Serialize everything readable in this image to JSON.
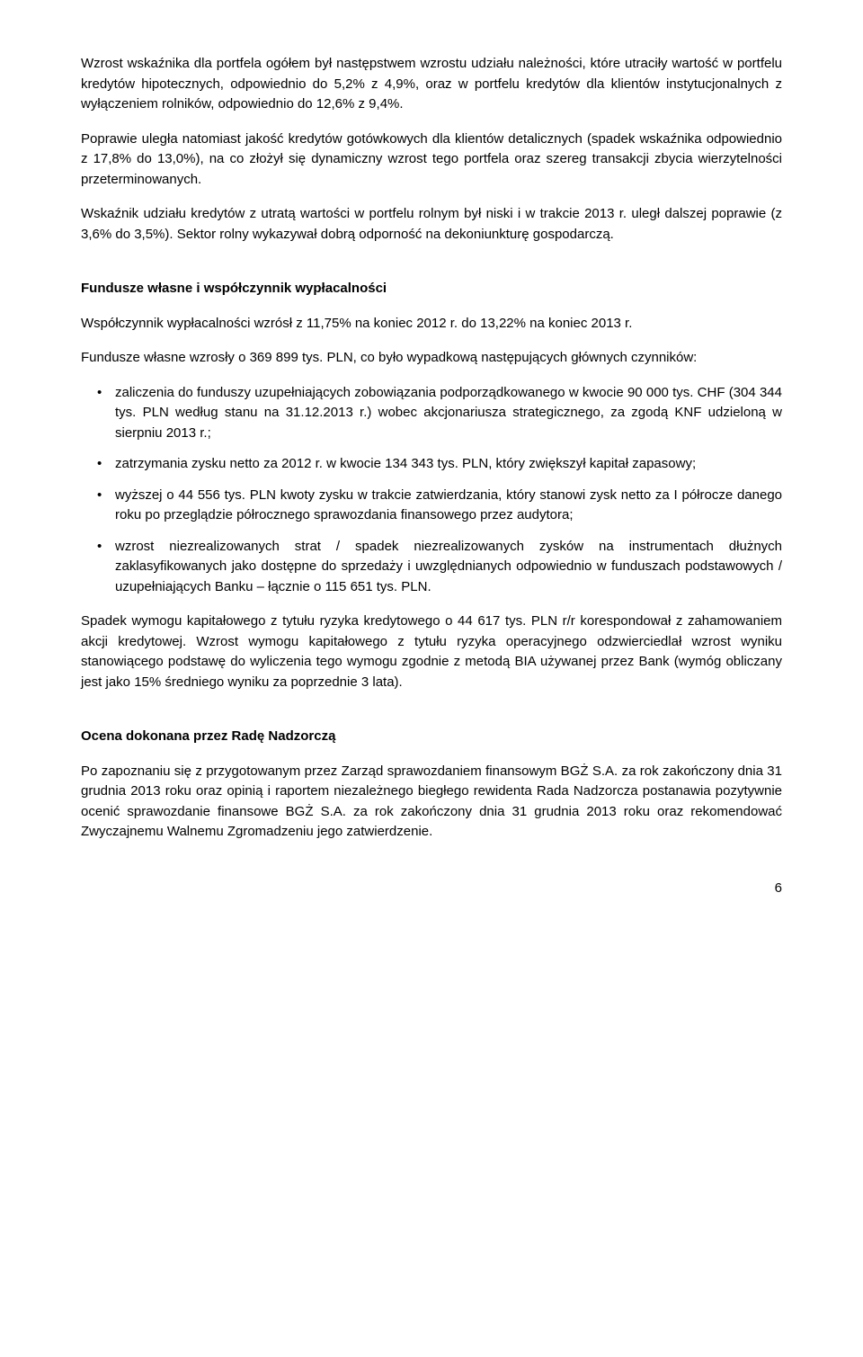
{
  "paragraphs": {
    "p1": "Wzrost wskaźnika dla portfela ogółem był następstwem wzrostu udziału należności, które utraciły wartość w portfelu kredytów hipotecznych, odpowiednio do 5,2% z 4,9%, oraz w portfelu kredytów dla klientów instytucjonalnych z wyłączeniem rolników, odpowiednio do 12,6% z 9,4%.",
    "p2": "Poprawie uległa natomiast jakość kredytów gotówkowych dla klientów detalicznych (spadek wskaźnika odpowiednio z 17,8% do 13,0%), na co złożył się dynamiczny wzrost tego portfela oraz szereg transakcji zbycia wierzytelności przeterminowanych.",
    "p3": "Wskaźnik udziału kredytów z utratą wartości w portfelu rolnym był niski i w trakcie 2013 r. uległ dalszej poprawie (z 3,6% do 3,5%). Sektor rolny wykazywał dobrą odporność na dekoniunkturę gospodarczą."
  },
  "section1": {
    "heading": "Fundusze własne i współczynnik wypłacalności",
    "p1": "Współczynnik wypłacalności wzrósł z 11,75% na koniec 2012 r. do 13,22% na koniec 2013 r.",
    "p2": "Fundusze własne wzrosły o 369 899 tys. PLN, co było wypadkową następujących głównych czynników:",
    "bullets": {
      "b1": "zaliczenia do funduszy uzupełniających zobowiązania podporządkowanego w kwocie 90 000 tys. CHF (304 344 tys. PLN według stanu na 31.12.2013 r.) wobec akcjonariusza strategicznego, za zgodą KNF udzieloną w sierpniu 2013 r.;",
      "b2": "zatrzymania zysku netto za 2012 r. w kwocie 134 343 tys. PLN, który zwiększył kapitał zapasowy;",
      "b3": "wyższej o 44 556 tys. PLN kwoty zysku w trakcie zatwierdzania, który stanowi zysk netto za I półrocze danego roku po przeglądzie półrocznego sprawozdania finansowego przez audytora;",
      "b4": "wzrost niezrealizowanych strat / spadek niezrealizowanych zysków na instrumentach dłużnych zaklasyfikowanych jako dostępne do sprzedaży i uwzględnianych odpowiednio w funduszach podstawowych / uzupełniających  Banku – łącznie o 115 651 tys. PLN."
    },
    "p3": "Spadek wymogu kapitałowego z tytułu ryzyka kredytowego o 44 617 tys. PLN r/r korespondował z zahamowaniem akcji kredytowej. Wzrost wymogu kapitałowego z tytułu ryzyka operacyjnego odzwierciedlał wzrost wyniku stanowiącego podstawę do wyliczenia tego wymogu zgodnie z metodą BIA używanej przez Bank (wymóg obliczany jest jako 15% średniego wyniku za poprzednie 3 lata)."
  },
  "section2": {
    "heading": "Ocena dokonana przez Radę Nadzorczą",
    "p1": "Po zapoznaniu się z przygotowanym przez Zarząd sprawozdaniem finansowym BGŻ S.A. za rok zakończony dnia 31 grudnia 2013 roku oraz opinią i raportem niezależnego biegłego rewidenta Rada Nadzorcza postanawia pozytywnie ocenić sprawozdanie finansowe  BGŻ S.A. za rok zakończony dnia 31 grudnia 2013 roku oraz rekomendować Zwyczajnemu Walnemu Zgromadzeniu jego zatwierdzenie."
  },
  "pageNumber": "6"
}
